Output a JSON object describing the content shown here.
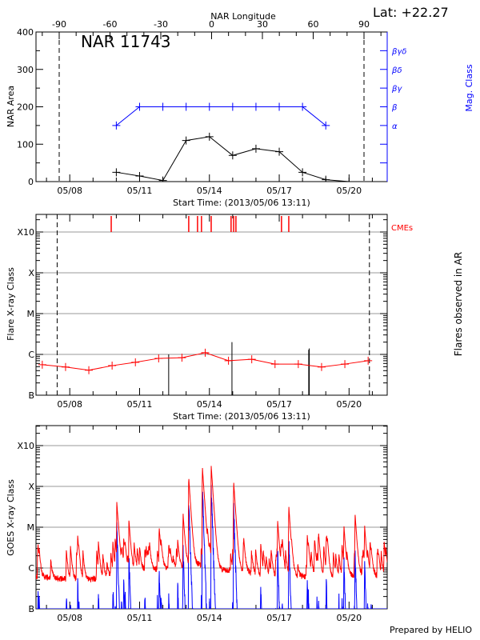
{
  "header": {
    "lat_label": "Lat: +22.27",
    "footer": "Prepared by HELIO"
  },
  "chart_data": [
    {
      "type": "line",
      "title": "NAR 11743",
      "xlabel": "Start Time: (2013/05/06 13:11)",
      "ylabel": "NAR Area",
      "y2label": "Mag. Class",
      "top_axis_label": "NAR Longitude",
      "top_ticks": [
        -90,
        -60,
        -30,
        0,
        30,
        60,
        90
      ],
      "limb_longitudes": [
        -90,
        90
      ],
      "xlim": [
        "05/06 13:11",
        "05/21 15:20"
      ],
      "xticks": [
        "05/08",
        "05/11",
        "05/14",
        "05/17",
        "05/20"
      ],
      "ylim": [
        0,
        400
      ],
      "yticks": [
        0,
        100,
        200,
        300,
        400
      ],
      "mag_class_ticks": [
        "α",
        "β",
        "βγ",
        "βδ",
        "βγδ"
      ],
      "colors": {
        "area": "#000000",
        "mag_class": "#0000ff"
      },
      "series": [
        {
          "name": "NAR Area",
          "x": [
            "05/10",
            "05/11",
            "05/12",
            "05/13",
            "05/14",
            "05/15",
            "05/16",
            "05/17",
            "05/18",
            "05/19",
            "05/20"
          ],
          "values": [
            25,
            15,
            3,
            110,
            120,
            70,
            88,
            80,
            25,
            5,
            0
          ]
        },
        {
          "name": "Mag. Class",
          "x": [
            "05/10",
            "05/11",
            "05/12",
            "05/13",
            "05/14",
            "05/15",
            "05/16",
            "05/17",
            "05/18",
            "05/19"
          ],
          "values": [
            "α",
            "β",
            "β",
            "β",
            "β",
            "β",
            "β",
            "β",
            "β",
            "α"
          ]
        }
      ]
    },
    {
      "type": "line",
      "xlabel": "Start Time: (2013/05/06 13:11)",
      "ylabel": "Flare X-ray Class",
      "y2label": "Flares observed in AR",
      "cme_label": "CMEs",
      "scale": "log",
      "xlim": [
        "05/06 13:11",
        "05/21 15:20"
      ],
      "xticks": [
        "05/08",
        "05/11",
        "05/14",
        "05/17",
        "05/20"
      ],
      "yticks": [
        "B",
        "C",
        "M",
        "X",
        "X10"
      ],
      "grid": true,
      "limb_times": [
        "05/07 11:00",
        "05/20 21:00"
      ],
      "colors": {
        "daily": "#ff0000",
        "flares": "#000000",
        "cmes": "#ff0000",
        "grid": "#999999"
      },
      "daily_flux": {
        "x": [
          "05/06 19:40",
          "05/07 19:40",
          "05/08 19:40",
          "05/09 19:40",
          "05/10 19:40",
          "05/11 19:40",
          "05/12 19:40",
          "05/13 19:40",
          "05/14 19:40",
          "05/15 19:40",
          "05/16 19:40",
          "05/17 19:40",
          "05/18 19:40",
          "05/19 19:40",
          "05/20 19:40"
        ],
        "values": [
          5.6e-07,
          4.9e-07,
          4.1e-07,
          5.3e-07,
          6.4e-07,
          8e-07,
          8.3e-07,
          1.1e-06,
          7e-07,
          7.6e-07,
          5.8e-07,
          5.8e-07,
          4.9e-07,
          5.8e-07,
          7e-07
        ]
      },
      "flares": [
        {
          "time": "05/12 06:00",
          "flux": 1e-06
        },
        {
          "time": "05/14 23:15",
          "flux": 2e-06
        },
        {
          "time": "05/18 06:25",
          "flux": 1.3e-06
        },
        {
          "time": "05/18 07:00",
          "flux": 1.4e-06
        }
      ],
      "cmes": [
        "05/09 18:45",
        "05/13 02:40",
        "05/13 11:45",
        "05/13 15:50",
        "05/14 01:50",
        "05/14 22:20",
        "05/15 01:00",
        "05/15 03:20",
        "05/17 02:20",
        "05/17 09:50"
      ]
    },
    {
      "type": "line",
      "ylabel": "GOES X-ray Class",
      "scale": "log",
      "xlim": [
        "05/06 13:11",
        "05/21 15:20"
      ],
      "xticks": [
        "05/08",
        "05/11",
        "05/14",
        "05/17",
        "05/20"
      ],
      "yticks": [
        "B",
        "C",
        "M",
        "X",
        "X10"
      ],
      "grid": true,
      "colors": {
        "long": "#ff0000",
        "short": "#0000ff",
        "grid": "#999999"
      },
      "background_daily": {
        "x": [
          "05/06",
          "05/07",
          "05/08",
          "05/09",
          "05/10",
          "05/11",
          "05/12",
          "05/13",
          "05/14",
          "05/15",
          "05/16",
          "05/17",
          "05/18",
          "05/19",
          "05/20",
          "05/21"
        ],
        "values": [
          6e-07,
          5.5e-07,
          5e-07,
          5.5e-07,
          9e-07,
          9e-07,
          1e-06,
          1.2e-06,
          9e-07,
          8e-07,
          6e-07,
          6e-07,
          6e-07,
          5.5e-07,
          7e-07,
          6e-07
        ]
      },
      "peaks": [
        {
          "time": "05/08 00:40",
          "long": 3e-06,
          "short": 2e-07
        },
        {
          "time": "05/09 05:30",
          "long": 3.5e-06,
          "short": 2.5e-07
        },
        {
          "time": "05/10 00:30",
          "long": 4e-05,
          "short": 1e-05
        },
        {
          "time": "05/10 13:00",
          "long": 1.4e-05,
          "short": 2e-06
        },
        {
          "time": "05/11 20:10",
          "long": 9e-06,
          "short": 1e-06
        },
        {
          "time": "05/12 20:50",
          "long": 2e-05,
          "short": 3e-06
        },
        {
          "time": "05/13 02:40",
          "long": 0.00017,
          "short": 6e-05
        },
        {
          "time": "05/13 16:45",
          "long": 0.0003,
          "short": 0.00011
        },
        {
          "time": "05/14 01:50",
          "long": 0.00032,
          "short": 0.00011
        },
        {
          "time": "05/15 01:00",
          "long": 0.00013,
          "short": 3.3e-05
        },
        {
          "time": "05/16 22:20",
          "long": 1.3e-05,
          "short": 3e-06
        },
        {
          "time": "05/17 09:50",
          "long": 3.3e-05,
          "short": 6e-06
        },
        {
          "time": "05/18 04:50",
          "long": 6e-06,
          "short": 5e-07
        },
        {
          "time": "05/19 18:40",
          "long": 1e-05,
          "short": 1.5e-06
        },
        {
          "time": "05/20 06:10",
          "long": 1.8e-05,
          "short": 2.8e-06
        },
        {
          "time": "05/20 16:00",
          "long": 1e-05,
          "short": 1.5e-06
        }
      ]
    }
  ]
}
